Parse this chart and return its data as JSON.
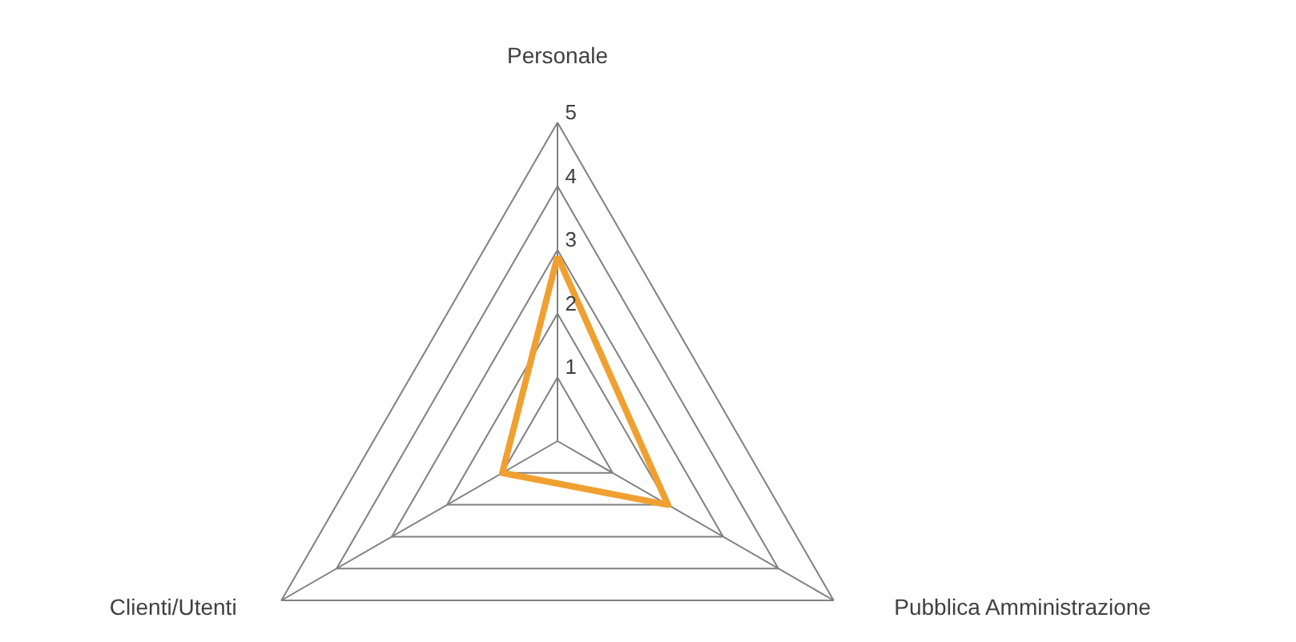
{
  "chart_data": {
    "type": "radar",
    "categories": [
      "Personale",
      "Pubblica Amministrazione",
      "Clienti/Utenti"
    ],
    "series": [
      {
        "color": "#f0a030",
        "values": [
          2.9,
          2.0,
          1.0
        ]
      }
    ],
    "ylim": [
      0,
      5
    ],
    "yticks": [
      1,
      2,
      3,
      4,
      5
    ],
    "grid": true
  }
}
